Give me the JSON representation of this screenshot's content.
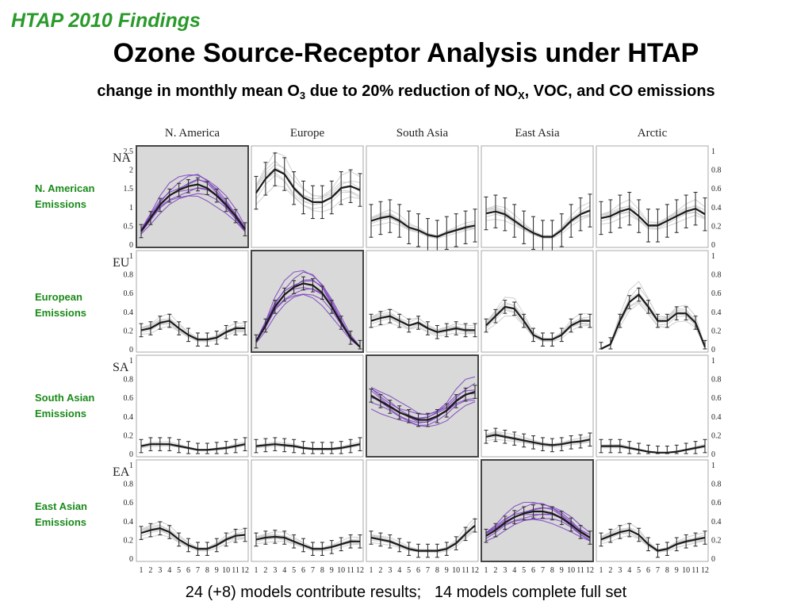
{
  "header": {
    "kicker": "HTAP 2010 Findings",
    "title": "Ozone Source-Receptor Analysis under HTAP",
    "subtitle_parts": [
      "change in monthly mean O",
      "3",
      " due to 20% reduction of NO",
      "X",
      ", VOC, and CO emissions"
    ]
  },
  "row_labels": [
    {
      "line1": "N. American",
      "line2": "Emissions"
    },
    {
      "line1": "European",
      "line2": "Emissions"
    },
    {
      "line1": "South Asian",
      "line2": "Emissions"
    },
    {
      "line1": "East Asian",
      "line2": "Emissions"
    }
  ],
  "footer": "24 (+8) models contribute results;   14 models complete full set",
  "colors": {
    "mean_line": "#1a1a1a",
    "model_lines_diagonal": "#7a3fc0",
    "model_lines_offdiag": "#cfcfcf",
    "diagonal_background": "#d9d9d9"
  },
  "chart_data": {
    "type": "line",
    "title": "",
    "xlabel": "",
    "ylabel": "",
    "x": [
      1,
      2,
      3,
      4,
      5,
      6,
      7,
      8,
      9,
      10,
      11,
      12
    ],
    "x_tick_labels": [
      "1",
      "2",
      "3",
      "4",
      "5",
      "6",
      "7",
      "8",
      "9",
      "10",
      "11",
      "12"
    ],
    "column_headers": [
      "N. America",
      "Europe",
      "South Asia",
      "East Asia",
      "Arctic"
    ],
    "row_codes": [
      "NA",
      "EU",
      "SA",
      "EA"
    ],
    "row_ylims": [
      [
        0,
        2.5
      ],
      [
        0,
        1
      ],
      [
        0,
        1
      ],
      [
        0,
        1
      ]
    ],
    "yticks_row0_first_panel": [
      "0",
      "0.5",
      "1",
      "1.5",
      "2",
      "2.5"
    ],
    "yticks_row0_other_panels": [
      "0",
      "0.2",
      "0.4",
      "0.6",
      "0.8",
      "1"
    ],
    "yticks_other_rows": [
      "0",
      "0.2",
      "0.4",
      "0.6",
      "0.8",
      "1"
    ],
    "grid": false,
    "legend": "none",
    "panels": [
      [
        {
          "mean": [
            0.35,
            0.7,
            1.05,
            1.3,
            1.45,
            1.55,
            1.6,
            1.5,
            1.3,
            1.05,
            0.75,
            0.4
          ],
          "diagonal": true
        },
        {
          "mean": [
            0.55,
            0.7,
            0.8,
            0.75,
            0.6,
            0.5,
            0.45,
            0.45,
            0.5,
            0.6,
            0.62,
            0.58
          ],
          "diagonal": false
        },
        {
          "mean": [
            0.25,
            0.28,
            0.3,
            0.25,
            0.18,
            0.15,
            0.1,
            0.08,
            0.12,
            0.15,
            0.18,
            0.2
          ],
          "diagonal": false
        },
        {
          "mean": [
            0.33,
            0.35,
            0.32,
            0.25,
            0.18,
            0.12,
            0.08,
            0.08,
            0.15,
            0.25,
            0.32,
            0.36
          ],
          "diagonal": false
        },
        {
          "mean": [
            0.28,
            0.3,
            0.35,
            0.38,
            0.3,
            0.2,
            0.2,
            0.25,
            0.3,
            0.35,
            0.38,
            0.32
          ],
          "diagonal": false
        }
      ],
      [
        {
          "mean": [
            0.2,
            0.22,
            0.28,
            0.3,
            0.22,
            0.15,
            0.1,
            0.1,
            0.12,
            0.18,
            0.22,
            0.22
          ],
          "diagonal": false
        },
        {
          "mean": [
            0.08,
            0.25,
            0.45,
            0.58,
            0.66,
            0.7,
            0.68,
            0.6,
            0.45,
            0.28,
            0.12,
            0.02
          ],
          "diagonal": true
        },
        {
          "mean": [
            0.3,
            0.33,
            0.35,
            0.3,
            0.25,
            0.28,
            0.22,
            0.18,
            0.2,
            0.22,
            0.2,
            0.2
          ],
          "diagonal": false
        },
        {
          "mean": [
            0.25,
            0.35,
            0.45,
            0.43,
            0.3,
            0.15,
            0.1,
            0.1,
            0.15,
            0.25,
            0.3,
            0.3
          ],
          "diagonal": false
        },
        {
          "mean": [
            0.0,
            0.05,
            0.3,
            0.5,
            0.58,
            0.45,
            0.3,
            0.3,
            0.38,
            0.38,
            0.28,
            0.02
          ],
          "diagonal": false
        }
      ],
      [
        {
          "mean": [
            0.08,
            0.1,
            0.1,
            0.1,
            0.08,
            0.06,
            0.04,
            0.04,
            0.05,
            0.06,
            0.08,
            0.1
          ],
          "diagonal": false
        },
        {
          "mean": [
            0.08,
            0.09,
            0.1,
            0.09,
            0.08,
            0.06,
            0.05,
            0.05,
            0.05,
            0.06,
            0.08,
            0.1
          ],
          "diagonal": false
        },
        {
          "mean": [
            0.62,
            0.56,
            0.5,
            0.44,
            0.4,
            0.36,
            0.36,
            0.4,
            0.46,
            0.56,
            0.63,
            0.66
          ],
          "diagonal": true
        },
        {
          "mean": [
            0.18,
            0.2,
            0.18,
            0.16,
            0.14,
            0.12,
            0.1,
            0.09,
            0.1,
            0.12,
            0.13,
            0.15
          ],
          "diagonal": false
        },
        {
          "mean": [
            0.08,
            0.08,
            0.08,
            0.06,
            0.04,
            0.02,
            0.01,
            0.01,
            0.02,
            0.04,
            0.06,
            0.08
          ],
          "diagonal": false
        }
      ],
      [
        {
          "mean": [
            0.27,
            0.3,
            0.32,
            0.28,
            0.2,
            0.14,
            0.1,
            0.1,
            0.14,
            0.2,
            0.24,
            0.25
          ],
          "diagonal": false
        },
        {
          "mean": [
            0.2,
            0.22,
            0.23,
            0.22,
            0.18,
            0.14,
            0.1,
            0.1,
            0.12,
            0.15,
            0.18,
            0.18
          ],
          "diagonal": false
        },
        {
          "mean": [
            0.22,
            0.2,
            0.18,
            0.14,
            0.1,
            0.08,
            0.08,
            0.08,
            0.1,
            0.16,
            0.26,
            0.35
          ],
          "diagonal": false
        },
        {
          "mean": [
            0.24,
            0.3,
            0.38,
            0.44,
            0.48,
            0.5,
            0.5,
            0.48,
            0.43,
            0.36,
            0.28,
            0.22
          ],
          "diagonal": true
        },
        {
          "mean": [
            0.2,
            0.24,
            0.28,
            0.3,
            0.25,
            0.15,
            0.08,
            0.1,
            0.15,
            0.18,
            0.2,
            0.22
          ],
          "diagonal": false
        }
      ]
    ]
  }
}
